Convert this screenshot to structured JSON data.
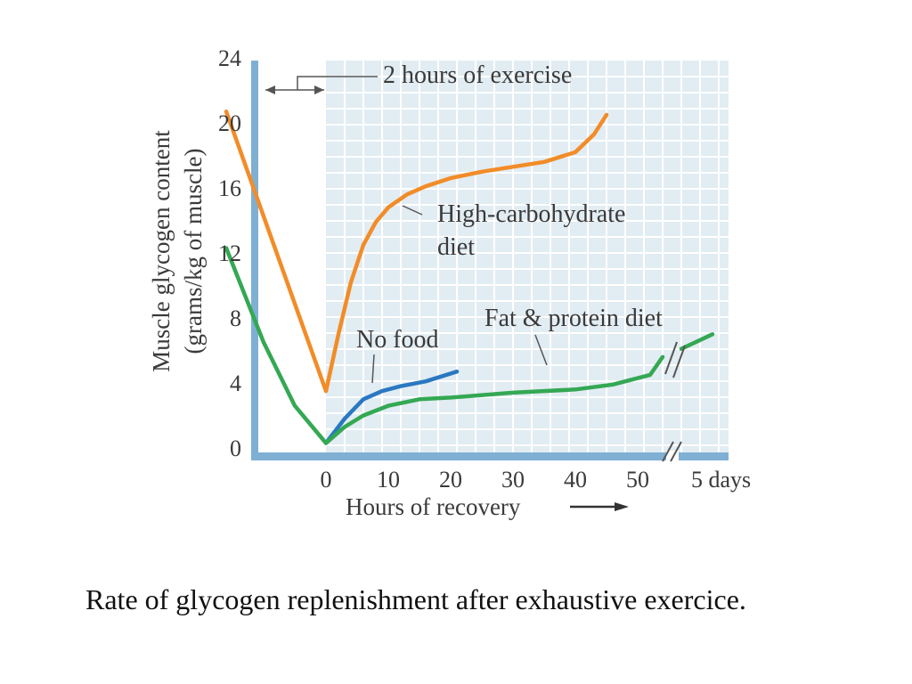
{
  "chart_data": {
    "type": "line",
    "ylabel_line1": "Muscle glycogen content",
    "ylabel_line2": "(grams/kg of muscle)",
    "xlabel": "Hours of recovery",
    "ylim": [
      0,
      24
    ],
    "y_ticks": [
      0,
      4,
      8,
      12,
      16,
      20,
      24
    ],
    "xlim": [
      -16,
      54
    ],
    "x_ticks": [
      0,
      10,
      20,
      30,
      40,
      50
    ],
    "x_extra_label": "5 days",
    "exercise_annotation": "2 hours of exercise",
    "grid": true,
    "shade_from_x": 0,
    "series": [
      {
        "name": "High-carbohydrate diet",
        "color": "#f28c28",
        "points": [
          [
            -16,
            20.7
          ],
          [
            0,
            3.5
          ],
          [
            2,
            7.0
          ],
          [
            4,
            10.2
          ],
          [
            6,
            12.5
          ],
          [
            8,
            13.9
          ],
          [
            10,
            14.8
          ],
          [
            13,
            15.6
          ],
          [
            16,
            16.1
          ],
          [
            20,
            16.6
          ],
          [
            25,
            17.0
          ],
          [
            30,
            17.3
          ],
          [
            35,
            17.6
          ],
          [
            40,
            18.2
          ],
          [
            43,
            19.3
          ],
          [
            45,
            20.5
          ]
        ]
      },
      {
        "name": "No food",
        "color": "#2a78c2",
        "points": [
          [
            0,
            0.3
          ],
          [
            3,
            1.8
          ],
          [
            6,
            3.0
          ],
          [
            9,
            3.5
          ],
          [
            12,
            3.8
          ],
          [
            16,
            4.1
          ],
          [
            21,
            4.7
          ]
        ]
      },
      {
        "name": "Fat & protein diet",
        "color": "#34a853",
        "points": [
          [
            -16,
            12.3
          ],
          [
            -10,
            6.5
          ],
          [
            -5,
            2.6
          ],
          [
            0,
            0.3
          ],
          [
            3,
            1.3
          ],
          [
            6,
            2.0
          ],
          [
            10,
            2.6
          ],
          [
            15,
            3.0
          ],
          [
            20,
            3.1
          ],
          [
            30,
            3.4
          ],
          [
            40,
            3.6
          ],
          [
            46,
            3.9
          ],
          [
            52,
            4.5
          ],
          [
            54,
            5.6
          ],
          [
            57,
            6.1
          ],
          [
            62,
            7.0
          ]
        ]
      }
    ],
    "series_labels": [
      {
        "line1": "High-carbohydrate",
        "line2": "diet"
      },
      {
        "line1": "No food"
      },
      {
        "line1": "Fat & protein diet"
      }
    ]
  },
  "caption": "Rate of glycogen replenishment after exhaustive exercice."
}
